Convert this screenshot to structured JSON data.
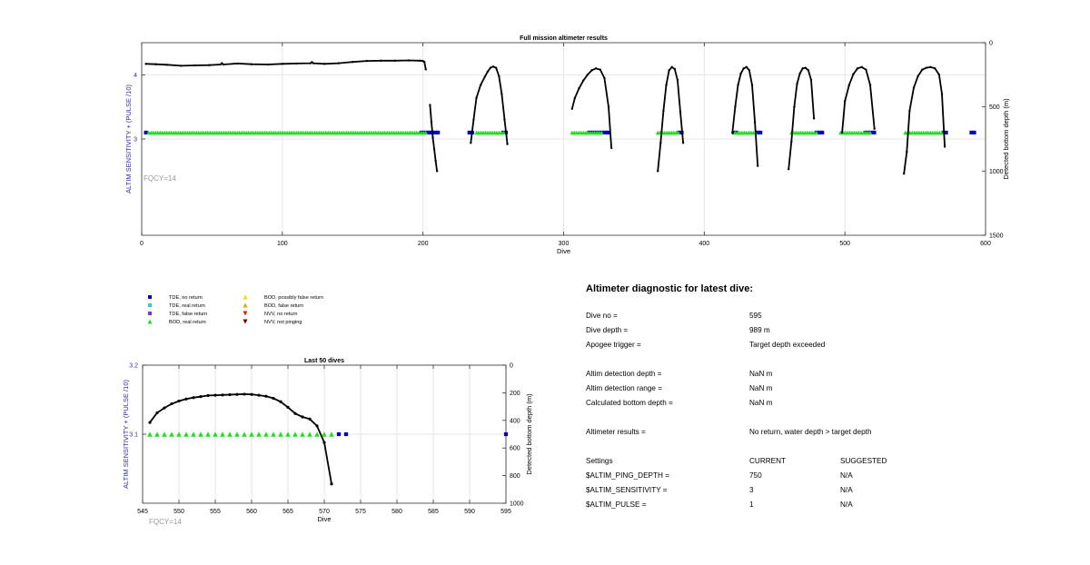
{
  "chart_data": [
    {
      "type": "line",
      "title": "Full mission altimeter results",
      "xlabel": "Dive",
      "ylabel": "ALTIM SENSITIVITY + (PULSE /10)",
      "y2label": "Detected bottom depth (m)",
      "xlim": [
        0,
        600
      ],
      "ylim": [
        1.5,
        4.5
      ],
      "y2lim": [
        1500,
        0
      ],
      "xticks": [
        "0",
        "100",
        "200",
        "300",
        "400",
        "500",
        "600"
      ],
      "yticks": [
        "3",
        "4"
      ],
      "y2ticks": [
        "0",
        "500",
        "1000",
        "1500"
      ],
      "grid": true,
      "annotation": "FQCY=14",
      "series": [
        {
          "name": "TDE, no return",
          "segments": [
            [
              3,
              4
            ],
            [
              199,
              212
            ],
            [
              233,
              236
            ],
            [
              257,
              260
            ],
            [
              318,
              333
            ],
            [
              382,
              385
            ],
            [
              421,
              424
            ],
            [
              438,
              440
            ],
            [
              480,
              484
            ],
            [
              515,
              522
            ],
            [
              570,
              572
            ],
            [
              590,
              592
            ]
          ],
          "value": 3.1
        },
        {
          "name": "BOD, real return",
          "segments": [
            [
              5,
              202
            ],
            [
              238,
              258
            ],
            [
              306,
              328
            ],
            [
              367,
              382
            ],
            [
              422,
              437
            ],
            [
              462,
              480
            ],
            [
              497,
              518
            ],
            [
              543,
              570
            ]
          ],
          "value": 3.1
        },
        {
          "name": "Detected bottom depth",
          "axis": "y2",
          "groups": [
            {
              "x": [
                3,
                10,
                18,
                28,
                38,
                48,
                56,
                57,
                58,
                68,
                78,
                90,
                100,
                110,
                120,
                121,
                122,
                130,
                140,
                150,
                160,
                170,
                180,
                190,
                198,
                200,
                201,
                202
              ],
              "y": [
                165,
                168,
                172,
                180,
                177,
                175,
                170,
                160,
                170,
                162,
                168,
                170,
                165,
                162,
                160,
                152,
                160,
                165,
                160,
                150,
                142,
                140,
                140,
                138,
                140,
                143,
                150,
                208
              ]
            },
            {
              "x": [
                205,
                206,
                207,
                208,
                209,
                210
              ],
              "y": [
                485,
                620,
                740,
                830,
                920,
                1000
              ]
            },
            {
              "x": [
                234,
                236,
                238,
                241,
                244,
                246,
                248,
                250,
                252,
                254,
                256,
                258,
                260
              ],
              "y": [
                780,
                600,
                430,
                330,
                265,
                225,
                195,
                186,
                196,
                260,
                400,
                600,
                790
              ]
            },
            {
              "x": [
                306,
                308,
                311,
                314,
                317,
                320,
                323,
                326,
                329,
                332,
                334
              ],
              "y": [
                515,
                430,
                355,
                295,
                250,
                215,
                200,
                210,
                275,
                500,
                820
              ]
            },
            {
              "x": [
                367,
                369,
                371,
                373,
                375,
                377,
                379,
                381,
                383,
                385
              ],
              "y": [
                1000,
                780,
                530,
                330,
                215,
                190,
                205,
                290,
                540,
                780
              ]
            },
            {
              "x": [
                420,
                422,
                424,
                426,
                428,
                430,
                432,
                434,
                436,
                438
              ],
              "y": [
                700,
                500,
                330,
                240,
                200,
                190,
                215,
                330,
                620,
                960
              ]
            },
            {
              "x": [
                460,
                462,
                464,
                466,
                468,
                470,
                472,
                474,
                476,
                478
              ],
              "y": [
                985,
                770,
                500,
                320,
                240,
                200,
                196,
                215,
                290,
                590
              ]
            },
            {
              "x": [
                498,
                500,
                503,
                506,
                509,
                512,
                515,
                518,
                521
              ],
              "y": [
                700,
                455,
                330,
                245,
                200,
                190,
                210,
                330,
                670
              ]
            },
            {
              "x": [
                542,
                544,
                546,
                549,
                552,
                555,
                558,
                561,
                564,
                567,
                569,
                571
              ],
              "y": [
                1020,
                850,
                530,
                350,
                260,
                210,
                195,
                190,
                200,
                250,
                400,
                810
              ]
            }
          ]
        }
      ]
    },
    {
      "type": "line",
      "title": "Last 50 dives",
      "xlabel": "Dive",
      "ylabel": "ALTIM SENSITIVITY + (PULSE /10)",
      "y2label": "Detected bottom depth (m)",
      "xlim": [
        545,
        595
      ],
      "ylim": [
        3.0,
        3.2
      ],
      "y2lim": [
        1000,
        0
      ],
      "xticks": [
        "545",
        "550",
        "555",
        "560",
        "565",
        "570",
        "575",
        "580",
        "585",
        "590",
        "595"
      ],
      "yticks": [
        "3.1",
        "3.2"
      ],
      "y2ticks": [
        "0",
        "200",
        "400",
        "600",
        "800",
        "1000"
      ],
      "grid": true,
      "annotation": "FQCY=14",
      "series": [
        {
          "name": "BOD, real return",
          "x": [
            546,
            547,
            548,
            549,
            550,
            551,
            552,
            553,
            554,
            555,
            556,
            557,
            558,
            559,
            560,
            561,
            562,
            563,
            564,
            565,
            566,
            567,
            568,
            569,
            570,
            571
          ],
          "value": 3.1
        },
        {
          "name": "TDE, no return",
          "x": [
            572,
            573,
            595
          ],
          "value": 3.1
        },
        {
          "name": "Detected bottom depth",
          "axis": "y2",
          "x": [
            546,
            547,
            548,
            549,
            550,
            551,
            552,
            553,
            554,
            555,
            556,
            557,
            558,
            559,
            560,
            561,
            562,
            563,
            564,
            565,
            566,
            567,
            568,
            569,
            570,
            571
          ],
          "y": [
            415,
            345,
            310,
            280,
            260,
            245,
            235,
            228,
            220,
            218,
            216,
            214,
            212,
            210,
            212,
            218,
            225,
            240,
            265,
            305,
            350,
            375,
            390,
            440,
            560,
            860
          ]
        }
      ]
    }
  ],
  "legend": {
    "items": [
      {
        "label": "TDE, no return",
        "marker": "square",
        "color": "#0000cc"
      },
      {
        "label": "BOD, possibly false return",
        "marker": "triangle-up",
        "color": "#f2d61a"
      },
      {
        "label": "TDE, real return",
        "marker": "square",
        "color": "#33cccc"
      },
      {
        "label": "BOD, false return",
        "marker": "triangle-up",
        "color": "#f0a000"
      },
      {
        "label": "TDE, false return",
        "marker": "square",
        "color": "#8a2be2"
      },
      {
        "label": "NVV, no return",
        "marker": "triangle-down",
        "color": "#dd2200"
      },
      {
        "label": "BOD, real return",
        "marker": "triangle-up",
        "color": "#22dd22"
      },
      {
        "label": "NVV, not pinging",
        "marker": "triangle-down",
        "color": "#6b0000"
      }
    ]
  },
  "colors": {
    "axis_label": "#2b2bb0",
    "tde_no_return": "#0000cc",
    "bod_real_return": "#22dd22",
    "depth_line": "#000000",
    "annotation": "#999999",
    "grid": "#e6e6e6"
  },
  "diagnostic": {
    "title": "Altimeter diagnostic for latest dive:",
    "dive_no_label": "Dive no =",
    "dive_no_value": "595",
    "dive_depth_label": "Dive depth =",
    "dive_depth_value": "989 m",
    "apogee_label": "Apogee trigger =",
    "apogee_value": "Target depth exceeded",
    "det_depth_label": "Altim detection depth =",
    "det_depth_value": "NaN m",
    "det_range_label": "Altim detection range =",
    "det_range_value": "NaN m",
    "calc_bottom_label": "Calculated bottom depth =",
    "calc_bottom_value": "NaN m",
    "results_label": "Altimeter results =",
    "results_value": "No return, water depth > target depth",
    "settings_label": "Settings",
    "current_label": "CURRENT",
    "suggested_label": "SUGGESTED",
    "settings": [
      {
        "name": "$ALTIM_PING_DEPTH =",
        "current": "750",
        "suggested": "N/A"
      },
      {
        "name": "$ALTIM_SENSITIVITY =",
        "current": "3",
        "suggested": "N/A"
      },
      {
        "name": "$ALTIM_PULSE =",
        "current": "1",
        "suggested": "N/A"
      }
    ]
  }
}
